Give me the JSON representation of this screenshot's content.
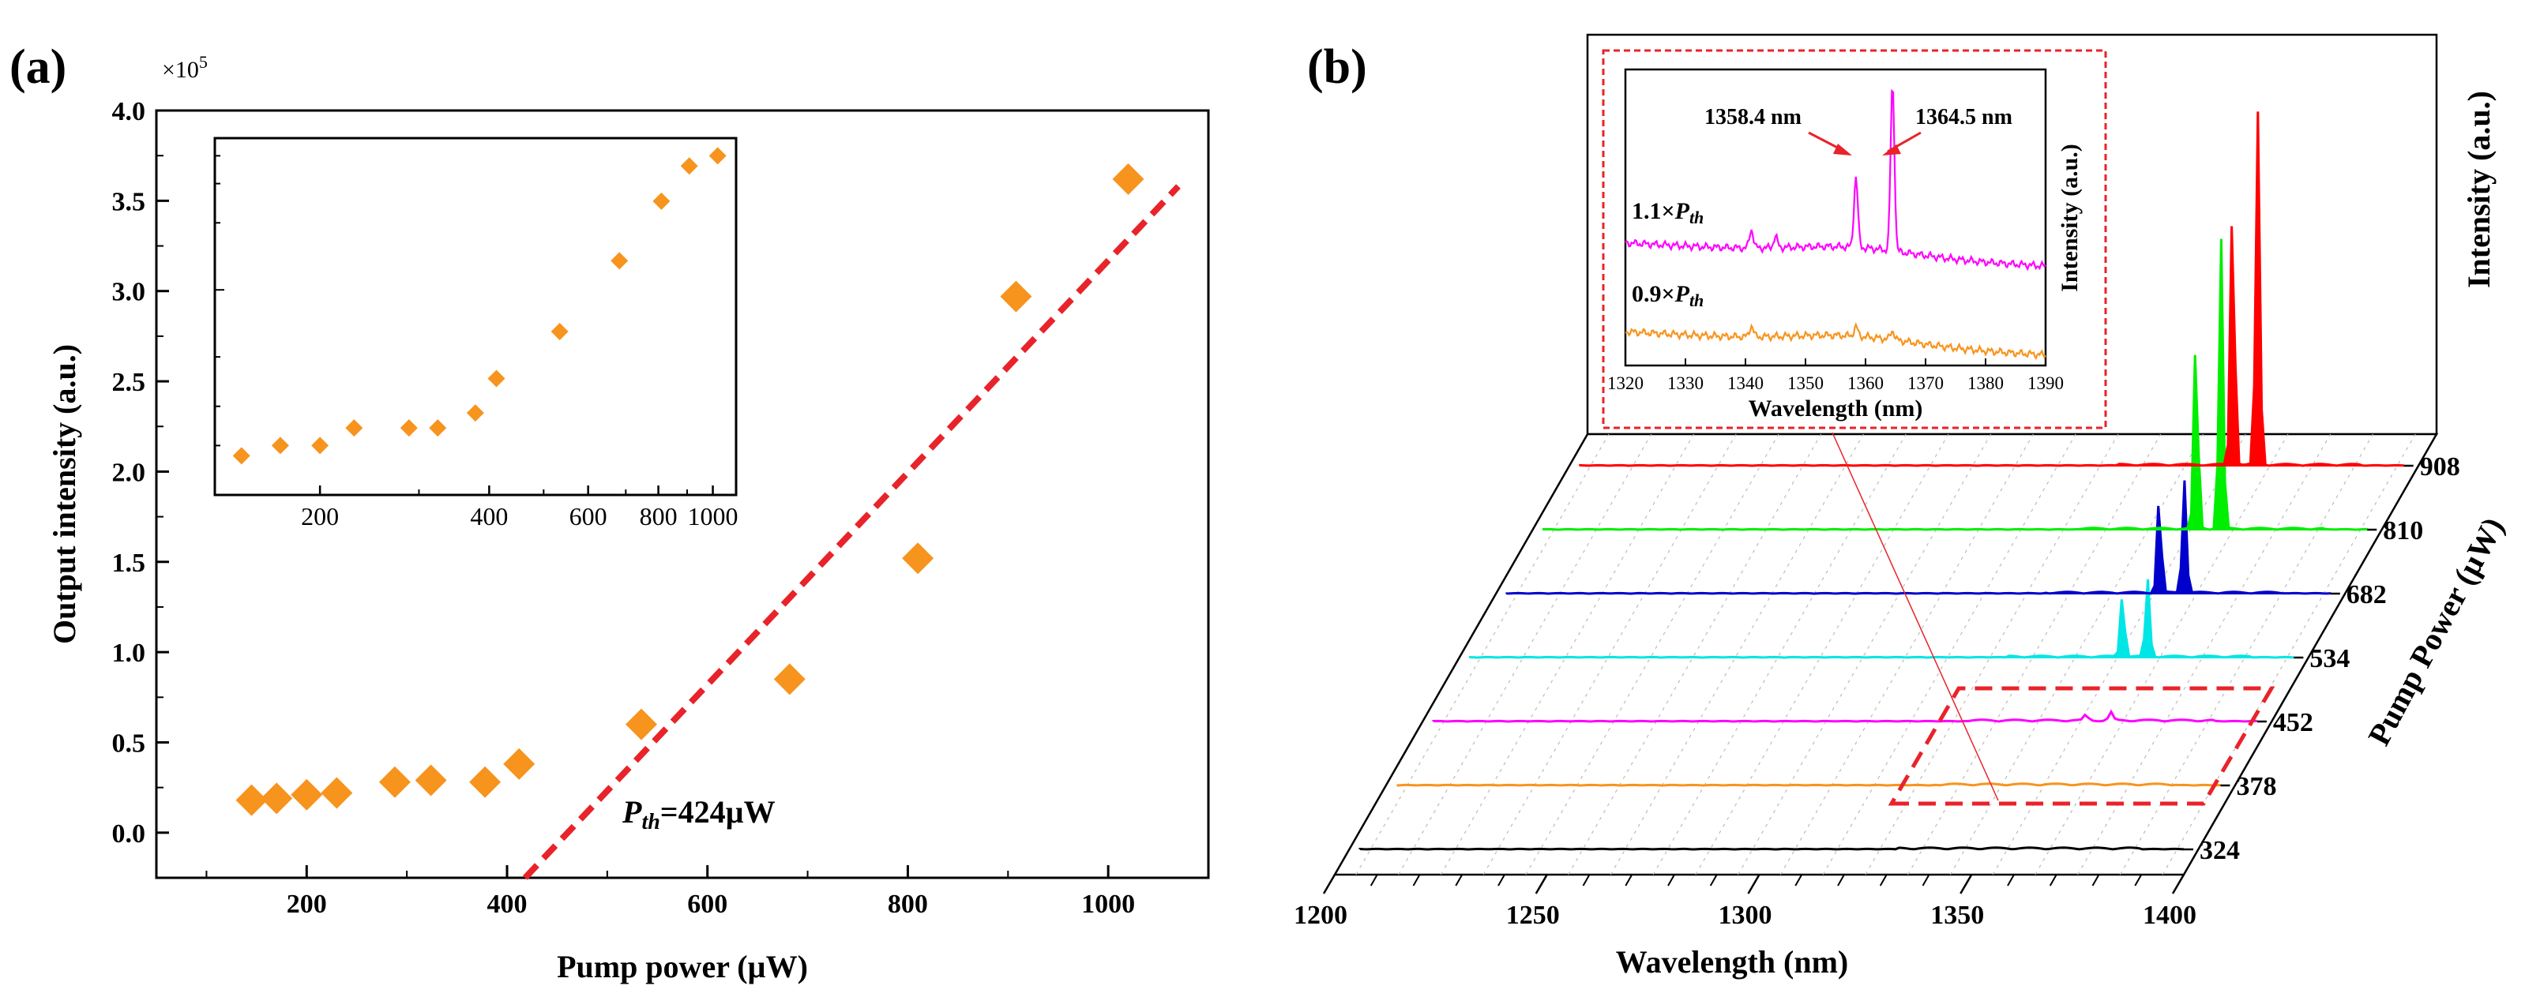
{
  "panel_a_label": "(a)",
  "panel_b_label": "(b)",
  "chart_data": [
    {
      "type": "scatter",
      "id": "panel-a-main",
      "xlabel": "Pump power (µW)",
      "ylabel": "Output intensity (a.u.)",
      "y_multiplier": "×10",
      "y_multiplier_exp": "5",
      "xlim": [
        50,
        1100
      ],
      "ylim": [
        -0.25,
        4.0
      ],
      "xticks": [
        "200",
        "400",
        "600",
        "800",
        "1000"
      ],
      "yticks": [
        "0.0",
        "0.5",
        "1.0",
        "1.5",
        "2.0",
        "2.5",
        "3.0",
        "3.5",
        "4.0"
      ],
      "x": [
        145,
        170,
        200,
        230,
        288,
        324,
        378,
        412,
        534,
        682,
        810,
        908,
        1020
      ],
      "y": [
        0.18,
        0.19,
        0.21,
        0.22,
        0.28,
        0.29,
        0.28,
        0.38,
        0.6,
        0.85,
        1.52,
        2.97,
        3.62
      ],
      "marker_color": "#f7941d",
      "fit_line": {
        "x": [
          418,
          1070
        ],
        "y": [
          -0.25,
          3.58
        ],
        "color": "#e8232a"
      },
      "annotation": {
        "base": "P",
        "sub": "th",
        "rest": "=424µW"
      }
    },
    {
      "type": "scatter",
      "id": "panel-a-inset",
      "x_scale": "log",
      "y_scale": "log",
      "xlim": [
        130,
        1100
      ],
      "ylim": [
        0.12,
        4.8
      ],
      "xticks": [
        "200",
        "400",
        "600",
        "800",
        "1000"
      ],
      "x": [
        145,
        170,
        200,
        230,
        288,
        324,
        378,
        412,
        534,
        682,
        810,
        908,
        1020
      ],
      "y": [
        0.18,
        0.2,
        0.2,
        0.24,
        0.24,
        0.24,
        0.28,
        0.4,
        0.65,
        1.35,
        2.5,
        3.6,
        4.0
      ],
      "marker_color": "#f7941d"
    },
    {
      "type": "line",
      "id": "panel-b-waterfall",
      "xlabel": "Wavelength (nm)",
      "ylabel": "Intensity (a.u.)",
      "zlabel": "Pump Power (µW)",
      "xlim": [
        1200,
        1400
      ],
      "xticks": [
        "1200",
        "1250",
        "1300",
        "1350",
        "1400"
      ],
      "series": [
        {
          "name": "324",
          "color": "#000000",
          "peaks": []
        },
        {
          "name": "378",
          "color": "#f7941d",
          "peaks": []
        },
        {
          "name": "452",
          "color": "#ff00ff",
          "peaks": [
            [
              1358.4,
              0.06
            ],
            [
              1364.5,
              0.09
            ]
          ]
        },
        {
          "name": "534",
          "color": "#00e5e5",
          "peaks": [
            [
              1358.4,
              0.7
            ],
            [
              1364.5,
              0.85
            ]
          ]
        },
        {
          "name": "682",
          "color": "#0000cc",
          "peaks": [
            [
              1358.4,
              1.05
            ],
            [
              1364.5,
              1.25
            ]
          ]
        },
        {
          "name": "810",
          "color": "#00ee00",
          "peaks": [
            [
              1358.4,
              2.1
            ],
            [
              1364.5,
              3.2
            ]
          ]
        },
        {
          "name": "908",
          "color": "#ff0000",
          "peaks": [
            [
              1358.4,
              2.9
            ],
            [
              1364.5,
              3.9
            ]
          ]
        }
      ]
    },
    {
      "type": "line",
      "id": "panel-b-inset",
      "xlabel": "Wavelength (nm)",
      "ylabel": "Intensity (a.u.)",
      "xlim": [
        1320,
        1390
      ],
      "xticks": [
        "1320",
        "1330",
        "1340",
        "1350",
        "1360",
        "1370",
        "1380",
        "1390"
      ],
      "series": [
        {
          "name": "1.1×P_th",
          "label_pre": "1.1×",
          "color": "#ff00ff",
          "offset": 0.6,
          "peaks": [
            [
              1358.4,
              0.38
            ],
            [
              1364.5,
              0.9
            ],
            [
              1341,
              0.1
            ],
            [
              1345,
              0.06
            ]
          ]
        },
        {
          "name": "0.9×P_th",
          "label_pre": "0.9×",
          "color": "#f7941d",
          "offset": 0.12,
          "peaks": [
            [
              1341,
              0.06
            ],
            [
              1358.4,
              0.05
            ],
            [
              1364.5,
              0.05
            ]
          ]
        }
      ],
      "annotations": [
        "1358.4 nm",
        "1364.5 nm"
      ]
    }
  ]
}
